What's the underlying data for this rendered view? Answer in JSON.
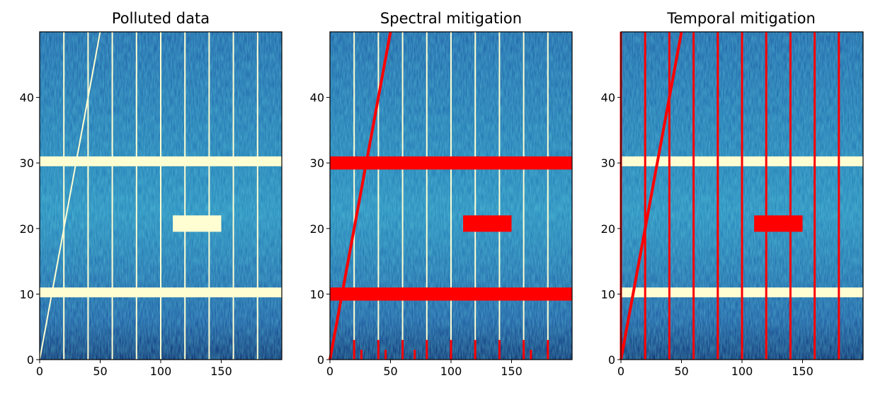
{
  "chart_data": [
    {
      "type": "heatmap",
      "title": "Polluted data",
      "xlabel": "",
      "ylabel": "",
      "xlim": [
        0,
        200
      ],
      "ylim": [
        0,
        50
      ],
      "xticks": [
        0,
        50,
        100,
        150
      ],
      "yticks": [
        0,
        10,
        20,
        30,
        40
      ],
      "colormap": "YlGnBu",
      "overlay_color": "#fffed2",
      "features": {
        "horizontal_bands": [
          {
            "y": [
              9.5,
              11
            ],
            "x": [
              0,
              200
            ]
          },
          {
            "y": [
              29.5,
              31
            ],
            "x": [
              0,
              200
            ]
          }
        ],
        "vertical_lines": [
          20,
          40,
          60,
          80,
          100,
          120,
          140,
          160,
          180
        ],
        "rectangle": {
          "x": [
            110,
            150
          ],
          "y": [
            19.5,
            22
          ]
        },
        "diagonal": {
          "from": [
            0,
            0
          ],
          "to": [
            50,
            50
          ]
        },
        "mask_sticks": []
      }
    },
    {
      "type": "heatmap",
      "title": "Spectral mitigation",
      "xlabel": "",
      "ylabel": "",
      "xlim": [
        0,
        200
      ],
      "ylim": [
        0,
        50
      ],
      "xticks": [
        0,
        50,
        100,
        150
      ],
      "yticks": [
        0,
        10,
        20,
        30,
        40
      ],
      "colormap": "YlGnBu",
      "overlay_color": "#ff0000",
      "features": {
        "horizontal_bands": [
          {
            "y": [
              9,
              11
            ],
            "x": [
              0,
              200
            ]
          },
          {
            "y": [
              29,
              31
            ],
            "x": [
              0,
              200
            ]
          }
        ],
        "vertical_lines": [],
        "rectangle": {
          "x": [
            110,
            150
          ],
          "y": [
            19.5,
            22
          ]
        },
        "diagonal": {
          "from": [
            0,
            0
          ],
          "to": [
            50,
            50
          ]
        },
        "mask_sticks": [
          {
            "x": 20,
            "h": 3
          },
          {
            "x": 26,
            "h": 1.5
          },
          {
            "x": 40,
            "h": 3
          },
          {
            "x": 46,
            "h": 1.5
          },
          {
            "x": 60,
            "h": 3
          },
          {
            "x": 70,
            "h": 1.5
          },
          {
            "x": 80,
            "h": 3
          },
          {
            "x": 100,
            "h": 3
          },
          {
            "x": 120,
            "h": 3
          },
          {
            "x": 140,
            "h": 3
          },
          {
            "x": 160,
            "h": 3
          },
          {
            "x": 166,
            "h": 1.5
          },
          {
            "x": 180,
            "h": 3
          }
        ],
        "white_vertical_lines": [
          20,
          40,
          60,
          80,
          100,
          120,
          140,
          160,
          180
        ]
      }
    },
    {
      "type": "heatmap",
      "title": "Temporal mitigation",
      "xlabel": "",
      "ylabel": "",
      "xlim": [
        0,
        200
      ],
      "ylim": [
        0,
        50
      ],
      "xticks": [
        0,
        50,
        100,
        150
      ],
      "yticks": [
        0,
        10,
        20,
        30,
        40
      ],
      "colormap": "YlGnBu",
      "overlay_color": "#ff0000",
      "features": {
        "horizontal_bands": [],
        "white_horizontal_bands": [
          {
            "y": [
              9.5,
              11
            ],
            "x": [
              0,
              200
            ]
          },
          {
            "y": [
              29.5,
              31
            ],
            "x": [
              0,
              200
            ]
          }
        ],
        "vertical_lines": [
          0,
          20,
          40,
          60,
          80,
          100,
          120,
          140,
          160,
          180
        ],
        "rectangle": {
          "x": [
            110,
            150
          ],
          "y": [
            19.5,
            22
          ]
        },
        "diagonal": {
          "from": [
            0,
            0
          ],
          "to": [
            50,
            50
          ]
        },
        "mask_sticks": []
      }
    }
  ]
}
